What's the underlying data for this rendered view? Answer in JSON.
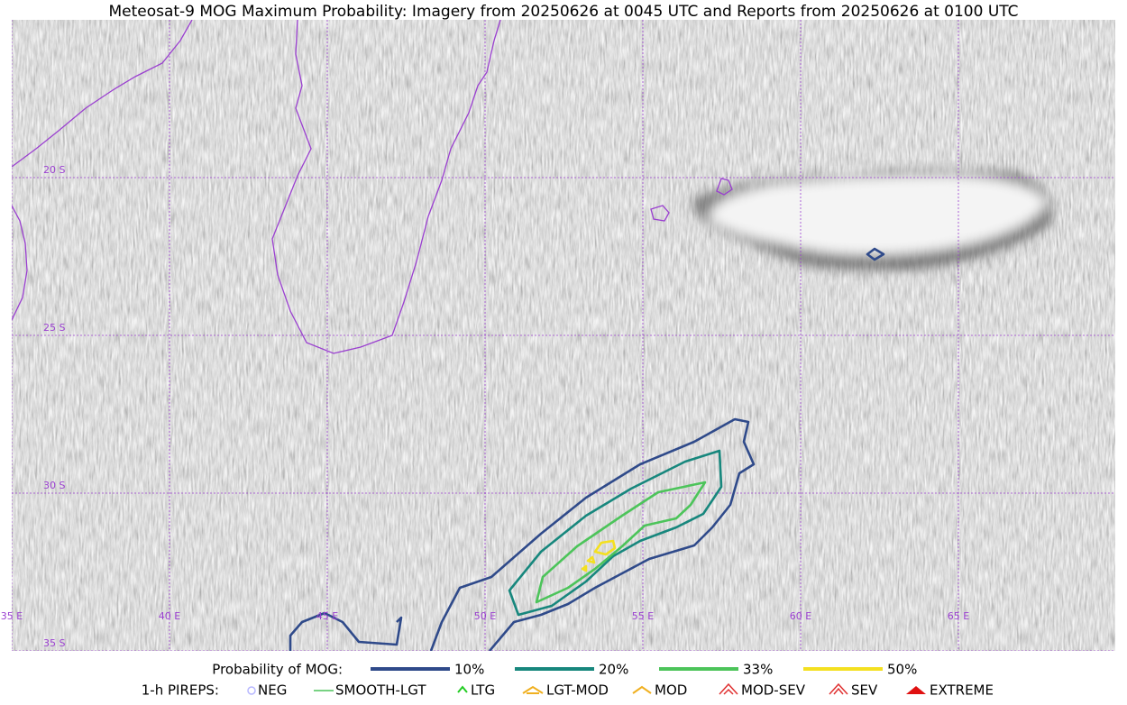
{
  "header": {
    "title": "Meteosat-9 MOG Maximum Probability: Imagery from 20250626 at 0045 UTC and Reports from 20250626 at 0100 UTC"
  },
  "map": {
    "lat_labels": [
      "20 S",
      "25 S",
      "30 S",
      "35 S"
    ],
    "lon_labels": [
      "35 E",
      "40 E",
      "45 E",
      "50 E",
      "55 E",
      "60 E",
      "65 E"
    ]
  },
  "legend": {
    "probability_title": "Probability of MOG:",
    "probability_items": [
      "10%",
      "20%",
      "33%",
      "50%"
    ],
    "pireps_title": "1-h PIREPS:",
    "pireps_items": [
      "NEG",
      "SMOOTH-LGT",
      "LTG",
      "LGT-MOD",
      "MOD",
      "MOD-SEV",
      "SEV",
      "EXTREME"
    ]
  }
}
